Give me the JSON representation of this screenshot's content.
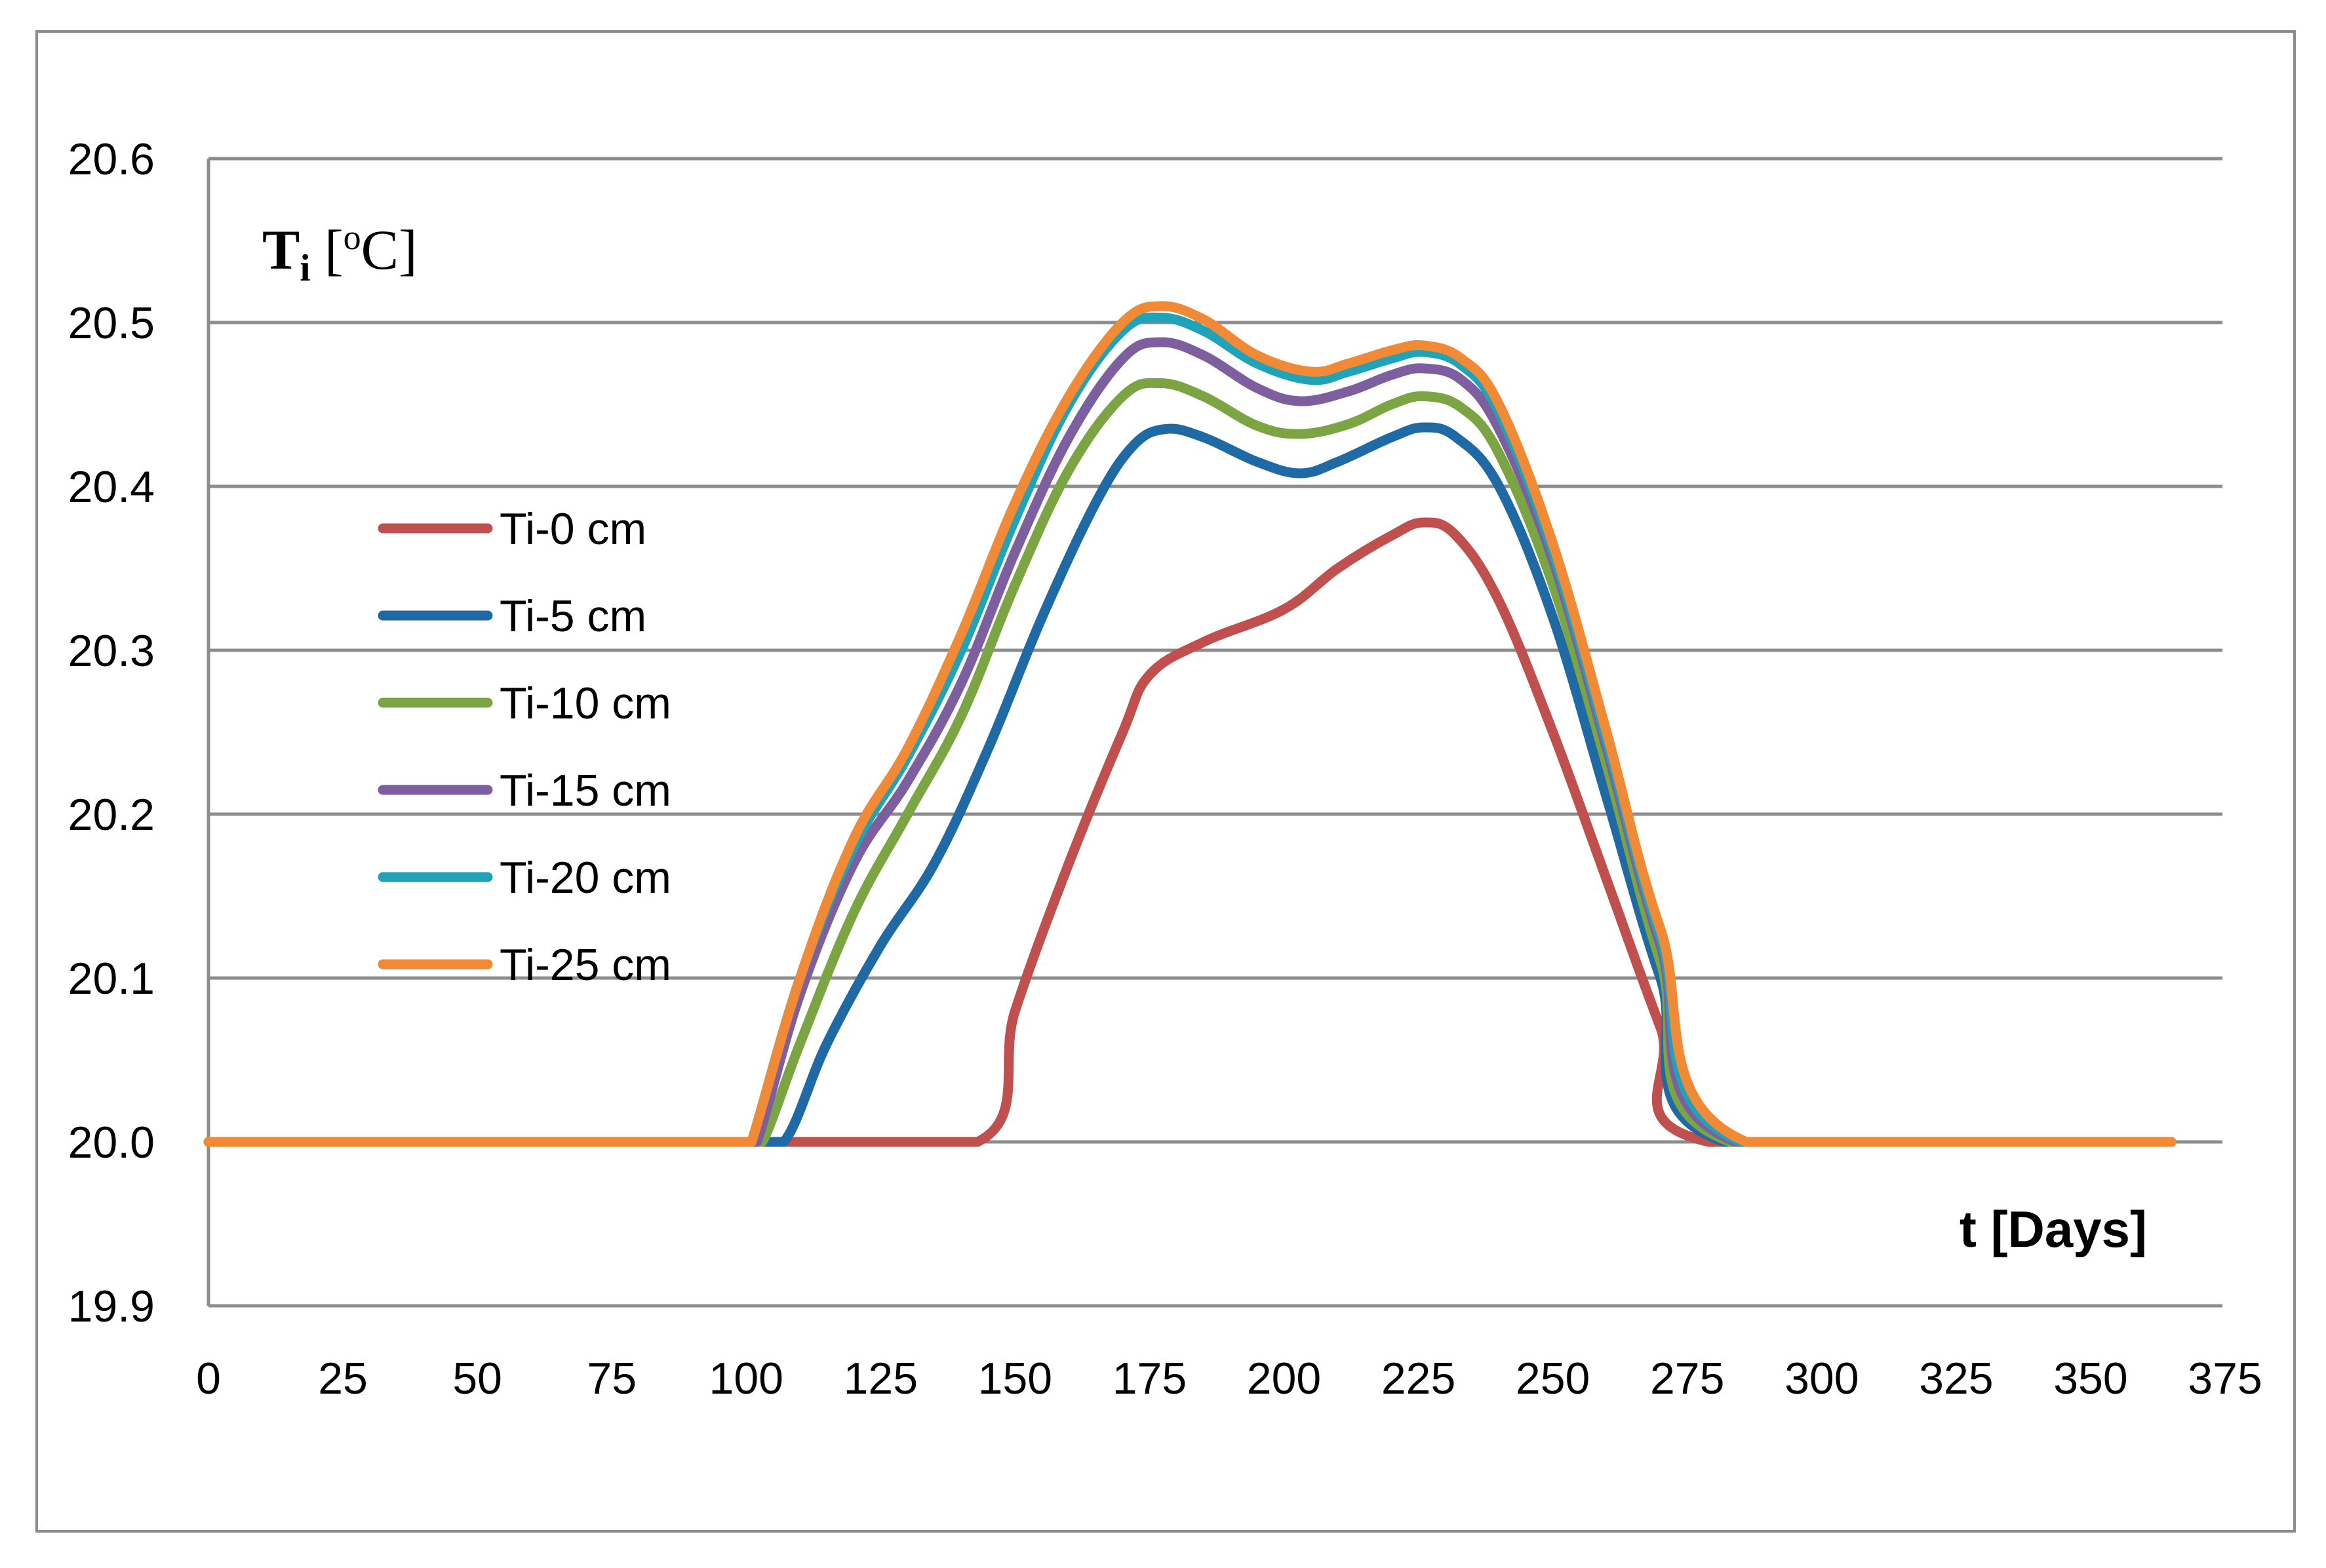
{
  "chart_data": {
    "type": "line",
    "title": "",
    "xlabel": "t [Days]",
    "ylabel": {
      "main": "T",
      "sub": "i",
      "open": " [",
      "sup": "o",
      "unit": "C]"
    },
    "xlim": [
      0,
      375
    ],
    "ylim": [
      19.9,
      20.6
    ],
    "x_ticks": [
      "0",
      "25",
      "50",
      "75",
      "100",
      "125",
      "150",
      "175",
      "200",
      "225",
      "250",
      "275",
      "300",
      "325",
      "350",
      "375"
    ],
    "y_ticks": [
      "19.9",
      "20.0",
      "20.1",
      "20.2",
      "20.3",
      "20.4",
      "20.5",
      "20.6"
    ],
    "grid": true,
    "legend_position": "left-middle",
    "series": [
      {
        "name": "Ti-0 cm",
        "color": "#c0504d",
        "x": [
          0,
          100,
          143,
          150,
          160,
          170,
          175,
          185,
          200,
          210,
          220,
          226,
          232,
          240,
          250,
          260,
          270,
          279,
          365
        ],
        "y": [
          20.0,
          20.0,
          20.0,
          20.08,
          20.17,
          20.25,
          20.285,
          20.305,
          20.325,
          20.35,
          20.37,
          20.378,
          20.37,
          20.33,
          20.25,
          20.16,
          20.07,
          20.0,
          20.0
        ]
      },
      {
        "name": "Ti-5 cm",
        "color": "#1f6aa5",
        "x": [
          0,
          100,
          107,
          115,
          125,
          135,
          145,
          155,
          165,
          172,
          178,
          185,
          195,
          203,
          210,
          220,
          226,
          232,
          240,
          250,
          260,
          270,
          282,
          365
        ],
        "y": [
          20.0,
          20.0,
          20.0,
          20.06,
          20.12,
          20.17,
          20.24,
          20.32,
          20.39,
          20.425,
          20.435,
          20.43,
          20.415,
          20.408,
          20.415,
          20.43,
          20.436,
          20.43,
          20.4,
          20.32,
          20.21,
          20.1,
          20.0,
          20.0
        ]
      },
      {
        "name": "Ti-10 cm",
        "color": "#7aa542",
        "x": [
          0,
          100,
          103,
          110,
          120,
          130,
          140,
          150,
          160,
          170,
          177,
          185,
          195,
          203,
          212,
          220,
          226,
          233,
          240,
          250,
          260,
          270,
          283,
          365
        ],
        "y": [
          20.0,
          20.0,
          20.0,
          20.06,
          20.14,
          20.2,
          20.26,
          20.34,
          20.41,
          20.455,
          20.463,
          20.455,
          20.437,
          20.432,
          20.438,
          20.45,
          20.455,
          20.448,
          20.42,
          20.34,
          20.23,
          20.11,
          20.0,
          20.0
        ]
      },
      {
        "name": "Ti-15 cm",
        "color": "#7d5fa0",
        "x": [
          0,
          100,
          102,
          110,
          120,
          130,
          140,
          150,
          160,
          170,
          177,
          185,
          195,
          203,
          212,
          220,
          226,
          233,
          240,
          250,
          260,
          270,
          284,
          365
        ],
        "y": [
          20.0,
          20.0,
          20.0,
          20.09,
          20.17,
          20.22,
          20.28,
          20.36,
          20.43,
          20.478,
          20.488,
          20.48,
          20.46,
          20.452,
          20.458,
          20.468,
          20.472,
          20.465,
          20.435,
          20.355,
          20.24,
          20.12,
          20.0,
          20.0
        ]
      },
      {
        "name": "Ti-20 cm",
        "color": "#1fa3b8",
        "x": [
          0,
          100,
          101,
          110,
          120,
          130,
          140,
          150,
          160,
          170,
          177,
          185,
          195,
          205,
          212,
          220,
          226,
          233,
          240,
          250,
          260,
          270,
          285,
          365
        ],
        "y": [
          20.0,
          20.0,
          20.0,
          20.1,
          20.18,
          20.235,
          20.3,
          20.38,
          20.45,
          20.495,
          20.503,
          20.495,
          20.475,
          20.465,
          20.47,
          20.478,
          20.482,
          20.474,
          20.445,
          20.36,
          20.245,
          20.125,
          20.0,
          20.0
        ]
      },
      {
        "name": "Ti-25 cm",
        "color": "#f08a37",
        "x": [
          0,
          100,
          101,
          110,
          120,
          130,
          140,
          150,
          160,
          170,
          177,
          185,
          195,
          205,
          212,
          220,
          226,
          233,
          240,
          250,
          260,
          270,
          286,
          365
        ],
        "y": [
          20.0,
          20.0,
          20.0,
          20.1,
          20.185,
          20.24,
          20.31,
          20.39,
          20.455,
          20.5,
          20.51,
          20.502,
          20.48,
          20.47,
          20.475,
          20.483,
          20.486,
          20.478,
          20.45,
          20.365,
          20.25,
          20.13,
          20.0,
          20.0
        ]
      }
    ]
  }
}
